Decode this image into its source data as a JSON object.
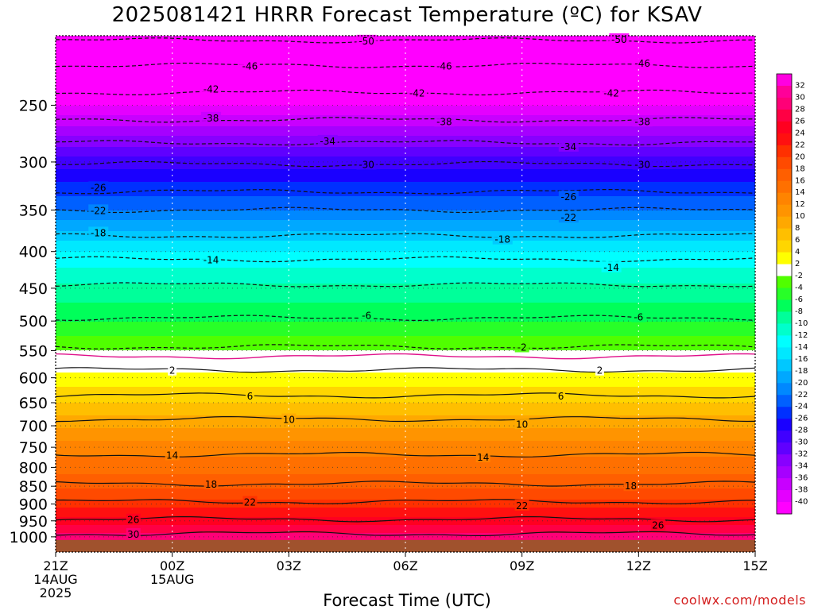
{
  "chart_data": {
    "type": "heatmap",
    "title": "2025081421 HRRR Forecast Temperature (ºC) for KSAV",
    "xlabel": "Forecast Time (UTC)",
    "ylabel": "",
    "credit": "coolwx.com/models",
    "y_axis": {
      "scale": "log",
      "range": [
        1050,
        200
      ],
      "ticks": [
        250,
        300,
        350,
        400,
        450,
        500,
        550,
        600,
        650,
        700,
        750,
        800,
        850,
        900,
        950,
        1000
      ]
    },
    "x_axis": {
      "range_hours": [
        0,
        18
      ],
      "ticks": [
        {
          "hour": 0,
          "lines": [
            "21Z",
            "14AUG",
            "2025"
          ]
        },
        {
          "hour": 3,
          "lines": [
            "00Z",
            "15AUG"
          ]
        },
        {
          "hour": 6,
          "lines": [
            "03Z"
          ]
        },
        {
          "hour": 9,
          "lines": [
            "06Z"
          ]
        },
        {
          "hour": 12,
          "lines": [
            "09Z"
          ]
        },
        {
          "hour": 15,
          "lines": [
            "12Z"
          ]
        },
        {
          "hour": 18,
          "lines": [
            "15Z"
          ]
        }
      ]
    },
    "freezing_level_hPa": 570,
    "temperature_profile": [
      {
        "p": 1000,
        "t": 29
      },
      {
        "p": 950,
        "t": 25
      },
      {
        "p": 900,
        "t": 21
      },
      {
        "p": 850,
        "t": 17.5
      },
      {
        "p": 800,
        "t": 15
      },
      {
        "p": 750,
        "t": 13
      },
      {
        "p": 700,
        "t": 9.5
      },
      {
        "p": 650,
        "t": 6
      },
      {
        "p": 600,
        "t": 3
      },
      {
        "p": 570,
        "t": 0
      },
      {
        "p": 550,
        "t": -2
      },
      {
        "p": 500,
        "t": -6
      },
      {
        "p": 450,
        "t": -9.5
      },
      {
        "p": 400,
        "t": -14
      },
      {
        "p": 350,
        "t": -22
      },
      {
        "p": 300,
        "t": -29
      },
      {
        "p": 250,
        "t": -40
      },
      {
        "p": 200,
        "t": -52
      }
    ],
    "contours": [
      {
        "value": 30,
        "style": "solid",
        "p": 990,
        "labels": [
          [
            2,
            990
          ]
        ]
      },
      {
        "value": 26,
        "style": "solid",
        "p": 945,
        "labels": [
          [
            2,
            945
          ],
          [
            15.5,
            962
          ]
        ]
      },
      {
        "value": 22,
        "style": "solid",
        "p": 893,
        "labels": [
          [
            5,
            893
          ],
          [
            12,
            903
          ]
        ]
      },
      {
        "value": 18,
        "style": "solid",
        "p": 843,
        "labels": [
          [
            4,
            843
          ],
          [
            14.8,
            848
          ]
        ]
      },
      {
        "value": 14,
        "style": "solid",
        "p": 768,
        "labels": [
          [
            3,
            768
          ],
          [
            11,
            773
          ]
        ]
      },
      {
        "value": 10,
        "style": "solid",
        "p": 685,
        "labels": [
          [
            6,
            685
          ],
          [
            12,
            695
          ]
        ]
      },
      {
        "value": 6,
        "style": "solid",
        "p": 635,
        "labels": [
          [
            5,
            635
          ],
          [
            13,
            635
          ]
        ]
      },
      {
        "value": 2,
        "style": "solid",
        "p": 585,
        "labels": [
          [
            3,
            585
          ],
          [
            14,
            585
          ]
        ]
      },
      {
        "value": 0,
        "style": "magenta",
        "p": 560,
        "labels": []
      },
      {
        "value": -2,
        "style": "dashed",
        "p": 543,
        "labels": [
          [
            12,
            543
          ]
        ]
      },
      {
        "value": -6,
        "style": "dashed",
        "p": 495,
        "labels": [
          [
            8,
            490
          ],
          [
            15,
            493
          ]
        ]
      },
      {
        "value": -10,
        "style": "dashed",
        "p": 445,
        "labels": []
      },
      {
        "value": -14,
        "style": "dashed",
        "p": 410,
        "labels": [
          [
            4,
            410
          ],
          [
            14.3,
            420
          ]
        ]
      },
      {
        "value": -18,
        "style": "dashed",
        "p": 380,
        "labels": [
          [
            1.1,
            376
          ],
          [
            11.5,
            384
          ]
        ]
      },
      {
        "value": -22,
        "style": "dashed",
        "p": 350,
        "labels": [
          [
            1.1,
            350
          ],
          [
            13.2,
            358
          ]
        ]
      },
      {
        "value": -26,
        "style": "dashed",
        "p": 330,
        "labels": [
          [
            1.1,
            325
          ],
          [
            13.2,
            335
          ]
        ]
      },
      {
        "value": -30,
        "style": "dashed",
        "p": 302,
        "labels": [
          [
            8,
            302
          ],
          [
            15.1,
            302
          ]
        ]
      },
      {
        "value": -34,
        "style": "dashed",
        "p": 282,
        "labels": [
          [
            7,
            280
          ],
          [
            13.2,
            285
          ]
        ]
      },
      {
        "value": -38,
        "style": "dashed",
        "p": 262,
        "labels": [
          [
            4,
            260
          ],
          [
            10,
            263
          ],
          [
            15.1,
            263
          ]
        ]
      },
      {
        "value": -42,
        "style": "dashed",
        "p": 240,
        "labels": [
          [
            4,
            237
          ],
          [
            9.3,
            240
          ],
          [
            14.3,
            240
          ]
        ]
      },
      {
        "value": -46,
        "style": "dashed",
        "p": 220,
        "labels": [
          [
            5,
            220
          ],
          [
            10,
            220
          ],
          [
            15.1,
            218
          ]
        ]
      },
      {
        "value": -50,
        "style": "dashed",
        "p": 203,
        "labels": [
          [
            8,
            203
          ],
          [
            14.5,
            202
          ]
        ]
      }
    ],
    "legend": {
      "placement": "right",
      "labels": [
        32,
        30,
        28,
        26,
        24,
        22,
        20,
        18,
        16,
        14,
        12,
        10,
        8,
        6,
        4,
        2,
        -2,
        -4,
        -6,
        -8,
        -10,
        -12,
        -14,
        -16,
        -18,
        -20,
        -22,
        -24,
        -26,
        -28,
        -30,
        -32,
        -34,
        -36,
        -38,
        -40
      ],
      "colors": [
        "#ff00e0",
        "#ff0099",
        "#ff0077",
        "#ff0044",
        "#ff0020",
        "#ff1010",
        "#ff3000",
        "#ff4a00",
        "#ff5f00",
        "#ff7000",
        "#ff8400",
        "#ff9400",
        "#ffa800",
        "#ffbf00",
        "#ffd600",
        "#ffff00",
        "#ffffff",
        "#50ff00",
        "#28ff28",
        "#00ff5a",
        "#00ff9a",
        "#00ffcc",
        "#00ffff",
        "#00e8ff",
        "#00c8ff",
        "#00a8ff",
        "#0088ff",
        "#0060ff",
        "#0030ff",
        "#1a00ff",
        "#4000ff",
        "#6000ff",
        "#8800ff",
        "#a600ff",
        "#c800ff",
        "#e400ff",
        "#ff00ff"
      ]
    },
    "ground_color": "#a0522d"
  }
}
